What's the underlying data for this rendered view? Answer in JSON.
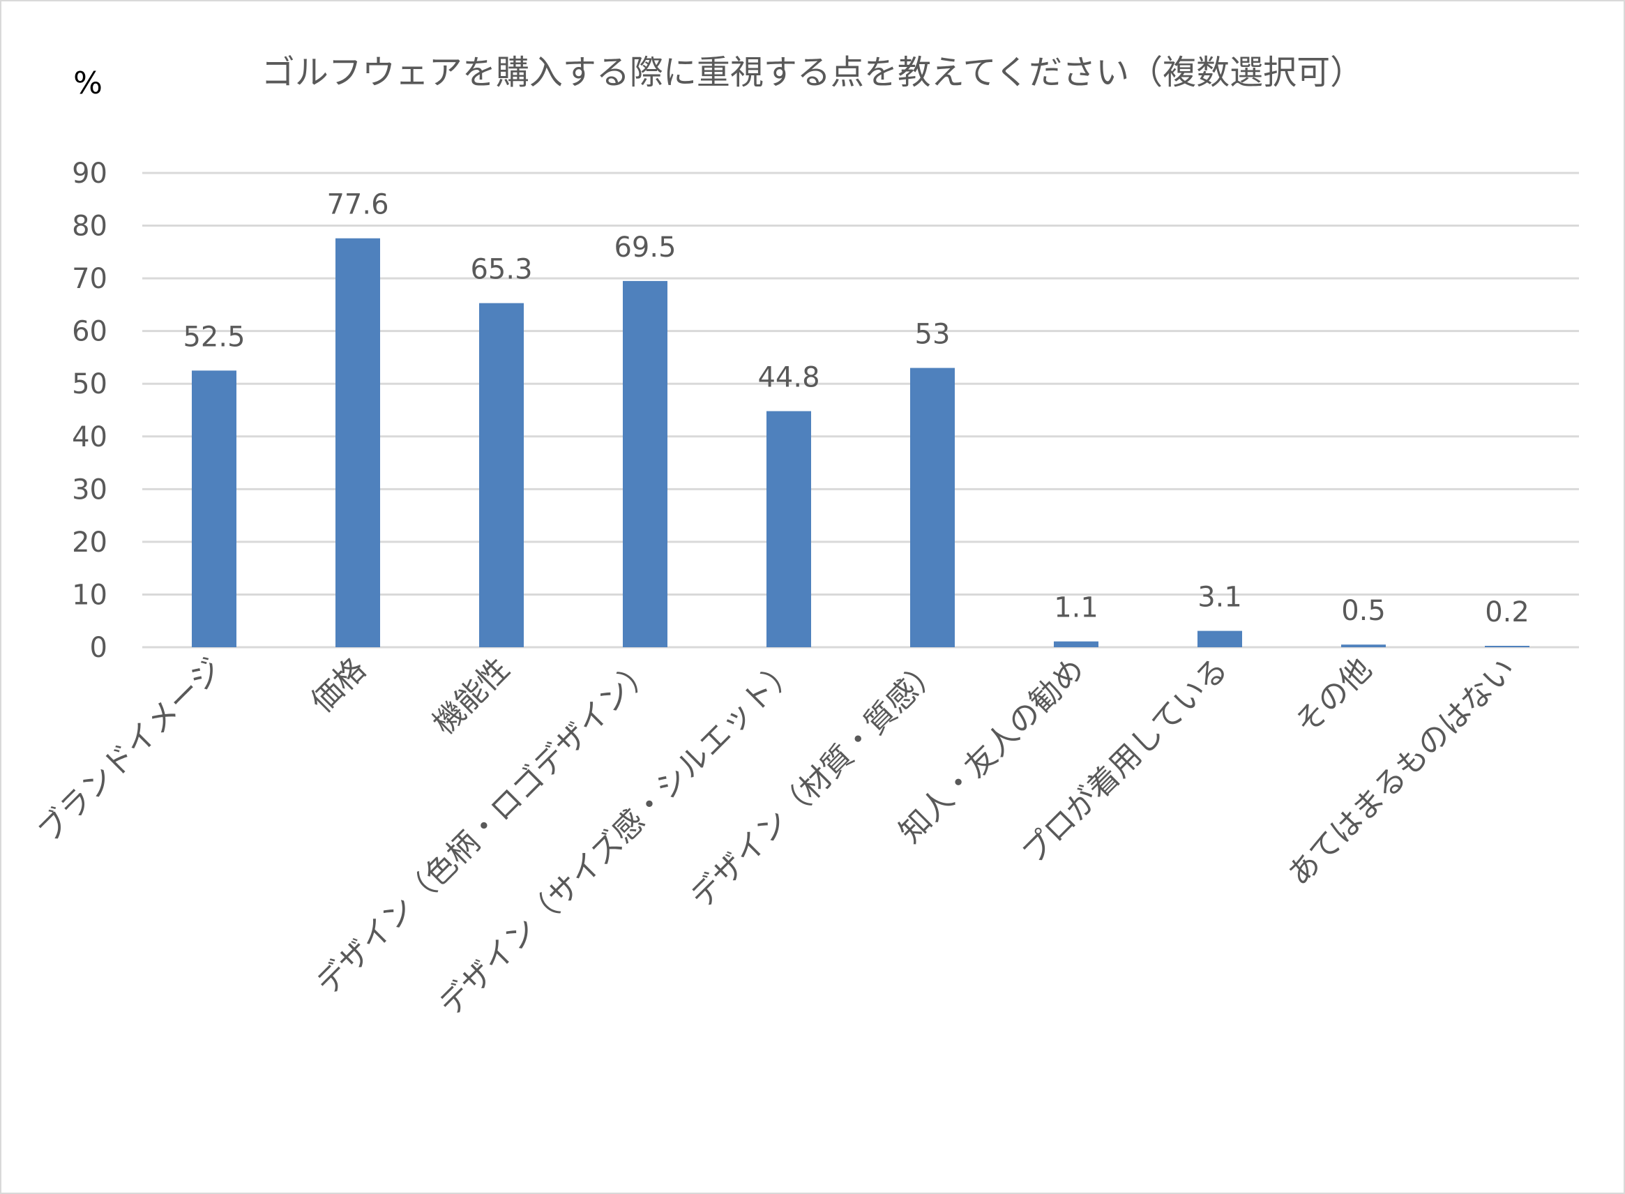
{
  "chart_data": {
    "type": "bar",
    "title": "ゴルフウェアを購入する際に重視する点を教えてください（複数選択可）",
    "ylabel": "%",
    "xlabel": "",
    "ylim": [
      0,
      90
    ],
    "yticks": [
      0,
      10,
      20,
      30,
      40,
      50,
      60,
      70,
      80,
      90
    ],
    "grid": true,
    "legend": "none",
    "bar_color": "#4f81bd",
    "categories": [
      "ブランドイメージ",
      "価格",
      "機能性",
      "デザイン（色柄・ロゴデザイン）",
      "デザイン（サイズ感・シルエット）",
      "デザイン（材質・質感）",
      "知人・友人の勧め",
      "プロが着用している",
      "その他",
      "あてはまるものはない"
    ],
    "values": [
      52.5,
      77.6,
      65.3,
      69.5,
      44.8,
      53,
      1.1,
      3.1,
      0.5,
      0.2
    ],
    "data_labels": [
      "52.5",
      "77.6",
      "65.3",
      "69.5",
      "44.8",
      "53",
      "1.1",
      "3.1",
      "0.5",
      "0.2"
    ]
  }
}
